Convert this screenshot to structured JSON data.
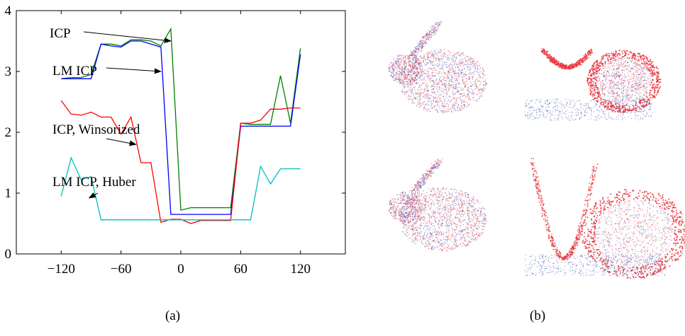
{
  "captions": {
    "a": "(a)",
    "b": "(b)"
  },
  "colors": {
    "ICP": "#008000",
    "LM ICP": "#0000ff",
    "ICP, Winsorized": "#ff0000",
    "LM ICP, Huber": "#00bfbf",
    "bunny_red": "#e8313a",
    "bunny_blue": "#3b4fb8"
  },
  "chart_data": {
    "type": "line",
    "title": "",
    "xlabel": "",
    "ylabel": "",
    "xlim": [
      -165,
      165
    ],
    "ylim": [
      0,
      4
    ],
    "xticks": [
      -120,
      -60,
      0,
      60,
      120
    ],
    "yticks": [
      0,
      1,
      2,
      3,
      4
    ],
    "xtick_labels": [
      "−120",
      "−60",
      "0",
      "60",
      "120"
    ],
    "ytick_labels": [
      "0",
      "1",
      "2",
      "3",
      "4"
    ],
    "grid": false,
    "series": [
      {
        "name": "ICP",
        "x": [
          -120,
          -110,
          -100,
          -90,
          -80,
          -70,
          -60,
          -50,
          -40,
          -30,
          -20,
          -10,
          0,
          10,
          20,
          30,
          40,
          50,
          60,
          70,
          80,
          90,
          100,
          110,
          120
        ],
        "values": [
          2.88,
          2.9,
          2.9,
          2.95,
          3.45,
          3.45,
          3.42,
          3.52,
          3.52,
          3.5,
          3.42,
          3.7,
          0.72,
          0.76,
          0.76,
          0.76,
          0.76,
          0.76,
          2.15,
          2.13,
          2.13,
          2.13,
          2.93,
          2.15,
          3.38
        ]
      },
      {
        "name": "LM ICP",
        "x": [
          -120,
          -110,
          -100,
          -90,
          -80,
          -70,
          -60,
          -50,
          -40,
          -30,
          -20,
          -10,
          0,
          10,
          20,
          30,
          40,
          50,
          60,
          70,
          80,
          90,
          100,
          110,
          120
        ],
        "values": [
          2.88,
          2.88,
          2.88,
          2.88,
          3.45,
          3.42,
          3.4,
          3.5,
          3.5,
          3.45,
          3.4,
          0.65,
          0.65,
          0.65,
          0.65,
          0.65,
          0.65,
          0.65,
          2.1,
          2.1,
          2.1,
          2.1,
          2.1,
          2.1,
          3.28
        ]
      },
      {
        "name": "ICP, Winsorized",
        "x": [
          -120,
          -110,
          -100,
          -90,
          -80,
          -70,
          -60,
          -50,
          -40,
          -30,
          -20,
          -10,
          0,
          10,
          20,
          30,
          40,
          50,
          60,
          70,
          80,
          90,
          100,
          110,
          120
        ],
        "values": [
          2.52,
          2.3,
          2.28,
          2.33,
          2.25,
          2.25,
          1.97,
          2.25,
          1.5,
          1.5,
          0.52,
          0.57,
          0.57,
          0.5,
          0.55,
          0.55,
          0.55,
          0.55,
          2.15,
          2.15,
          2.2,
          2.38,
          2.38,
          2.4,
          2.4
        ]
      },
      {
        "name": "LM ICP, Huber",
        "x": [
          -120,
          -110,
          -100,
          -90,
          -80,
          -70,
          -60,
          -50,
          -40,
          -30,
          -20,
          -10,
          0,
          10,
          20,
          30,
          40,
          50,
          60,
          70,
          80,
          90,
          100,
          110,
          120
        ],
        "values": [
          0.95,
          1.58,
          1.22,
          1.27,
          0.56,
          0.56,
          0.56,
          0.56,
          0.56,
          0.56,
          0.56,
          0.56,
          0.56,
          0.56,
          0.56,
          0.56,
          0.56,
          0.56,
          0.56,
          0.56,
          1.44,
          1.15,
          1.4,
          1.4,
          1.4
        ]
      }
    ],
    "annotations": [
      {
        "text": "ICP",
        "series": "ICP",
        "x": -10,
        "y": 3.5
      },
      {
        "text": "LM ICP",
        "series": "LM ICP",
        "x": -20,
        "y": 3.0
      },
      {
        "text": "ICP, Winsorized",
        "series": "ICP, Winsorized",
        "x": -45,
        "y": 1.8
      },
      {
        "text": "LM ICP, Huber",
        "series": "LM ICP, Huber",
        "x": -92,
        "y": 0.92
      }
    ]
  }
}
